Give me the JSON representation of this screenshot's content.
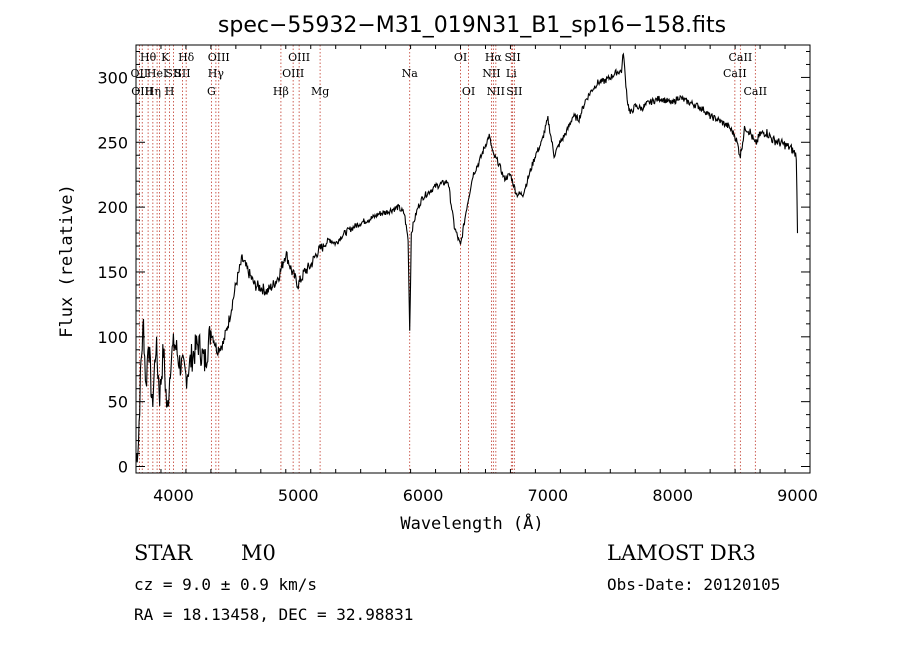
{
  "chart_data": {
    "type": "line",
    "title": "spec−55932−M31_019N31_B1_sp16−158.fits",
    "xlabel": "Wavelength (Å)",
    "ylabel": "Flux (relative)",
    "xlim": [
      3700,
      9100
    ],
    "ylim": [
      -5,
      325
    ],
    "xticks": [
      4000,
      5000,
      6000,
      7000,
      8000,
      9000
    ],
    "yticks": [
      0,
      50,
      100,
      150,
      200,
      250,
      300
    ],
    "grid": false,
    "series": [
      {
        "name": "flux",
        "x": [
          3700,
          3720,
          3740,
          3760,
          3780,
          3800,
          3830,
          3860,
          3890,
          3920,
          3950,
          3980,
          4010,
          4050,
          4100,
          4150,
          4200,
          4250,
          4300,
          4350,
          4400,
          4450,
          4500,
          4550,
          4600,
          4650,
          4700,
          4750,
          4800,
          4850,
          4900,
          4950,
          5000,
          5050,
          5100,
          5150,
          5200,
          5250,
          5300,
          5350,
          5400,
          5450,
          5500,
          5550,
          5600,
          5650,
          5700,
          5750,
          5800,
          5850,
          5880,
          5893,
          5906,
          5930,
          5960,
          6000,
          6050,
          6100,
          6150,
          6200,
          6250,
          6300,
          6350,
          6400,
          6450,
          6500,
          6530,
          6563,
          6600,
          6650,
          6700,
          6750,
          6800,
          6850,
          6900,
          6950,
          7000,
          7050,
          7100,
          7150,
          7200,
          7250,
          7300,
          7350,
          7400,
          7450,
          7500,
          7550,
          7590,
          7605,
          7620,
          7640,
          7660,
          7680,
          7700,
          7750,
          7800,
          7850,
          7900,
          7950,
          8000,
          8050,
          8100,
          8150,
          8200,
          8250,
          8300,
          8350,
          8400,
          8450,
          8500,
          8542,
          8580,
          8620,
          8662,
          8700,
          8750,
          8800,
          8850,
          8900,
          8950,
          8990,
          9000
        ],
        "y": [
          5,
          20,
          80,
          110,
          60,
          100,
          45,
          95,
          55,
          90,
          40,
          85,
          95,
          80,
          70,
          85,
          95,
          80,
          105,
          90,
          95,
          115,
          140,
          160,
          150,
          140,
          138,
          135,
          140,
          148,
          165,
          150,
          140,
          150,
          155,
          165,
          170,
          175,
          172,
          178,
          182,
          185,
          188,
          190,
          192,
          195,
          196,
          198,
          200,
          195,
          175,
          105,
          180,
          190,
          200,
          208,
          212,
          216,
          218,
          220,
          185,
          170,
          200,
          225,
          235,
          248,
          255,
          240,
          235,
          222,
          225,
          210,
          210,
          225,
          240,
          250,
          268,
          240,
          250,
          258,
          270,
          268,
          282,
          290,
          296,
          297,
          300,
          304,
          305,
          320,
          300,
          280,
          272,
          275,
          278,
          276,
          280,
          282,
          284,
          282,
          280,
          285,
          282,
          280,
          278,
          275,
          270,
          268,
          265,
          262,
          255,
          240,
          262,
          258,
          248,
          256,
          258,
          252,
          250,
          248,
          245,
          240,
          180
        ]
      }
    ],
    "lines": [
      {
        "x": 3727,
        "labels": [
          "OII"
        ],
        "row": 1
      },
      {
        "x": 3750,
        "labels": [
          "OIII"
        ],
        "row": 2
      },
      {
        "x": 3797,
        "labels": [
          "Hθ"
        ],
        "row": 0
      },
      {
        "x": 3835,
        "labels": [
          "Hη"
        ],
        "row": 2
      },
      {
        "x": 3869,
        "labels": [
          "HeI"
        ],
        "row": 1
      },
      {
        "x": 3889,
        "labels": [],
        "row": 0
      },
      {
        "x": 3934,
        "labels": [
          "K"
        ],
        "row": 0
      },
      {
        "x": 3969,
        "labels": [
          "H"
        ],
        "row": 2
      },
      {
        "x": 4000,
        "labels": [
          "SII"
        ],
        "row": 1
      },
      {
        "x": 4102,
        "labels": [
          "Hδ"
        ],
        "row": 0
      },
      {
        "x": 4072,
        "labels": [
          "SII"
        ],
        "row": 1
      },
      {
        "x": 4304,
        "labels": [
          "G"
        ],
        "row": 2
      },
      {
        "x": 4340,
        "labels": [
          "Hγ"
        ],
        "row": 1
      },
      {
        "x": 4363,
        "labels": [
          "OIII"
        ],
        "row": 0
      },
      {
        "x": 4861,
        "labels": [
          "Hβ"
        ],
        "row": 2
      },
      {
        "x": 4959,
        "labels": [
          "OIII"
        ],
        "row": 1
      },
      {
        "x": 5007,
        "labels": [
          "OIII"
        ],
        "row": 0
      },
      {
        "x": 5175,
        "labels": [
          "Mg"
        ],
        "row": 2
      },
      {
        "x": 5893,
        "labels": [
          "Na"
        ],
        "row": 1
      },
      {
        "x": 6300,
        "labels": [
          "OI"
        ],
        "row": 0
      },
      {
        "x": 6364,
        "labels": [
          "OI"
        ],
        "row": 2
      },
      {
        "x": 6548,
        "labels": [
          "NII"
        ],
        "row": 1
      },
      {
        "x": 6563,
        "labels": [
          "Hα"
        ],
        "row": 0
      },
      {
        "x": 6583,
        "labels": [
          "NII"
        ],
        "row": 2
      },
      {
        "x": 6707,
        "labels": [
          "Li"
        ],
        "row": 1
      },
      {
        "x": 6717,
        "labels": [
          "SII"
        ],
        "row": 0
      },
      {
        "x": 6731,
        "labels": [
          "SII"
        ],
        "row": 2
      },
      {
        "x": 8498,
        "labels": [
          "CaII"
        ],
        "row": 1
      },
      {
        "x": 8542,
        "labels": [
          "CaII"
        ],
        "row": 0
      },
      {
        "x": 8662,
        "labels": [
          "CaII"
        ],
        "row": 2
      }
    ]
  },
  "info": {
    "object_class": "STAR",
    "subclass": "M0",
    "cz": "cz = 9.0 ± 0.9 km/s",
    "coords": "RA =  18.13458, DEC =  32.98831",
    "survey": "LAMOST DR3",
    "obs_date": "Obs-Date: 20120105"
  }
}
